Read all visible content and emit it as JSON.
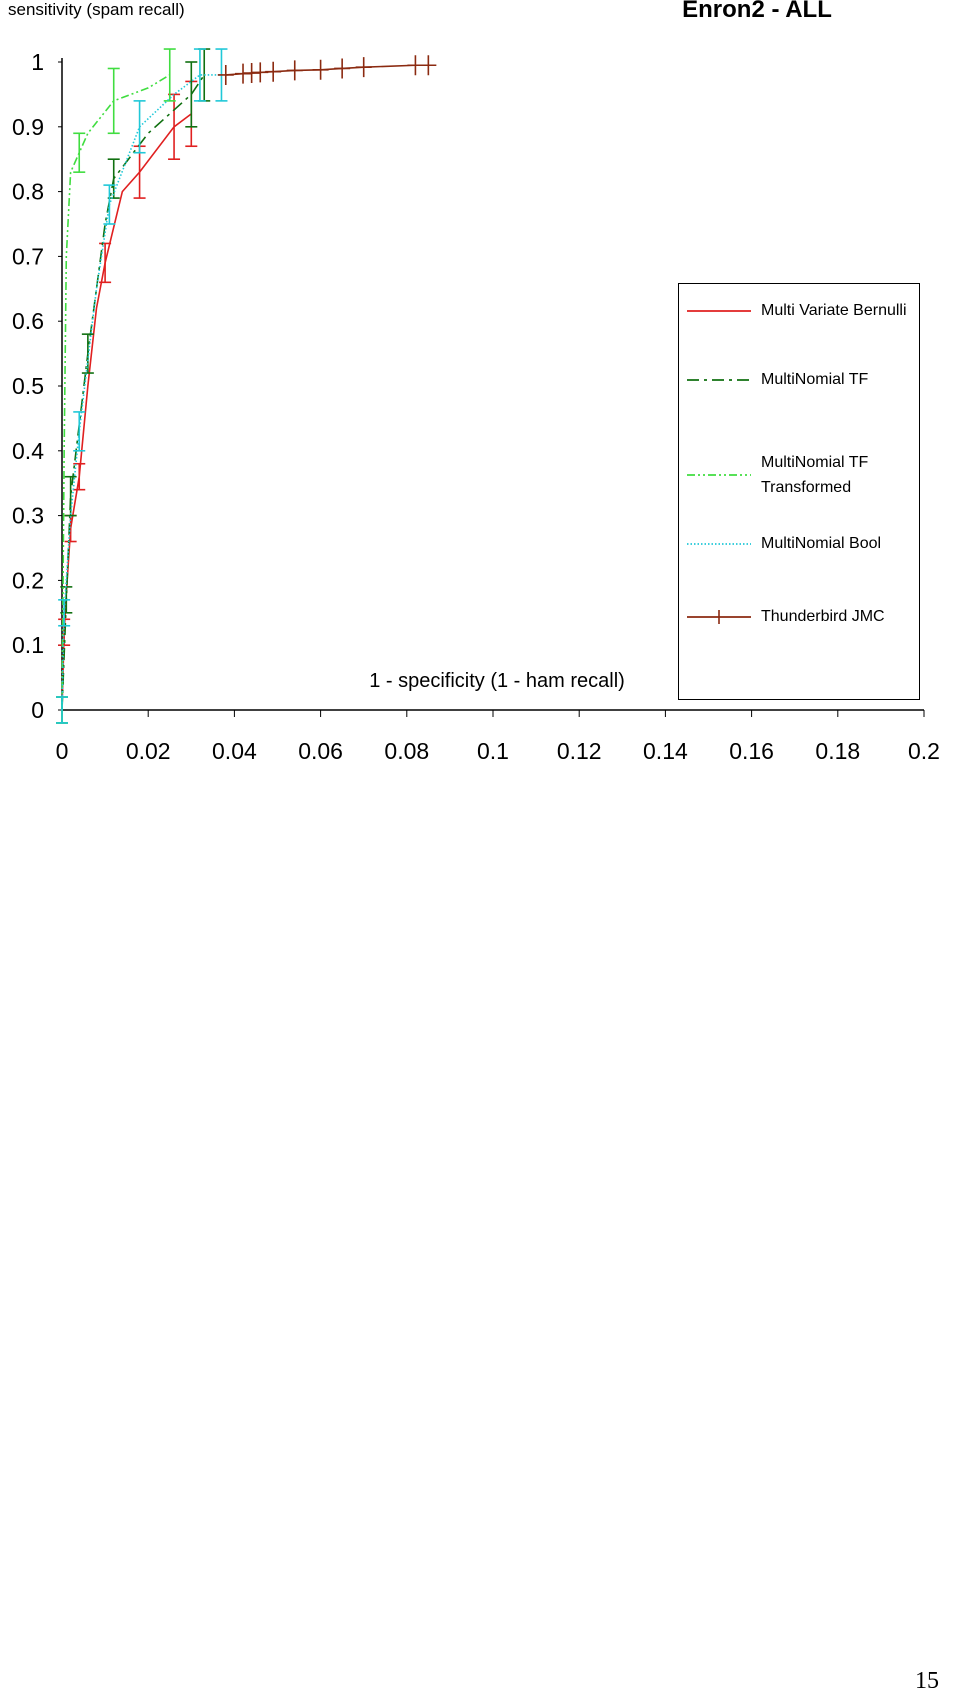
{
  "chart_data": {
    "type": "line",
    "title": "Enron2 - ALL",
    "y_label": "sensitivity (spam recall)",
    "x_label": "1 - specificity (1 - ham recall)",
    "xlim": [
      0,
      0.2
    ],
    "xticks": [
      0,
      0.02,
      0.04,
      0.06,
      0.08,
      0.1,
      0.12,
      0.14,
      0.16,
      0.18,
      0.2
    ],
    "ylim": [
      0,
      1
    ],
    "yticks": [
      0,
      0.1,
      0.2,
      0.3,
      0.4,
      0.5,
      0.6,
      0.7,
      0.8,
      0.9,
      1
    ],
    "legend": "right",
    "series": [
      {
        "name": "Multi Variate Bernulli",
        "color": "#e02020",
        "dash": "solid",
        "x": [
          0,
          0.0005,
          0.001,
          0.002,
          0.004,
          0.006,
          0.008,
          0.01,
          0.014,
          0.018,
          0.026,
          0.03
        ],
        "values": [
          0,
          0.12,
          0.18,
          0.28,
          0.36,
          0.5,
          0.62,
          0.69,
          0.8,
          0.83,
          0.9,
          0.92
        ],
        "errors": [
          null,
          0.02,
          null,
          0.02,
          0.02,
          null,
          null,
          0.03,
          null,
          0.04,
          0.05,
          0.05
        ]
      },
      {
        "name": "MultiNomial TF",
        "color": "#107010",
        "dash": "dashdot",
        "x": [
          0,
          0.001,
          0.002,
          0.006,
          0.01,
          0.012,
          0.02,
          0.03,
          0.033
        ],
        "values": [
          0,
          0.17,
          0.33,
          0.55,
          0.75,
          0.82,
          0.89,
          0.95,
          0.98
        ],
        "errors": [
          0.02,
          0.02,
          0.03,
          0.03,
          null,
          0.03,
          null,
          0.05,
          0.04
        ]
      },
      {
        "name": "MultiNomial TF Transformed",
        "color": "#40dd40",
        "dash": "dashdotdot",
        "x": [
          0,
          0.0005,
          0.001,
          0.002,
          0.004,
          0.006,
          0.012,
          0.02,
          0.025
        ],
        "values": [
          0,
          0.4,
          0.7,
          0.83,
          0.86,
          0.89,
          0.94,
          0.96,
          0.98
        ],
        "errors": [
          0.02,
          null,
          null,
          null,
          0.03,
          null,
          0.05,
          null,
          0.04
        ]
      },
      {
        "name": "MultiNomial Bool",
        "color": "#20c8d8",
        "dash": "dotted",
        "x": [
          0,
          0.0005,
          0.002,
          0.004,
          0.008,
          0.011,
          0.018,
          0.026,
          0.032,
          0.037
        ],
        "values": [
          0,
          0.15,
          0.3,
          0.43,
          0.65,
          0.78,
          0.9,
          0.95,
          0.98,
          0.98
        ],
        "errors": [
          0.02,
          0.02,
          null,
          0.03,
          null,
          0.03,
          0.04,
          null,
          0.04,
          0.04
        ]
      },
      {
        "name": "Thunderbird JMC",
        "color": "#8b2a10",
        "dash": "plus",
        "x": [
          0.038,
          0.042,
          0.044,
          0.046,
          0.049,
          0.054,
          0.06,
          0.065,
          0.07,
          0.082,
          0.085
        ],
        "values": [
          0.98,
          0.982,
          0.983,
          0.984,
          0.985,
          0.987,
          0.988,
          0.99,
          0.992,
          0.995,
          0.995
        ],
        "errors": [
          null,
          null,
          null,
          null,
          null,
          null,
          null,
          null,
          null,
          null,
          null
        ]
      }
    ]
  },
  "page_number": "15"
}
